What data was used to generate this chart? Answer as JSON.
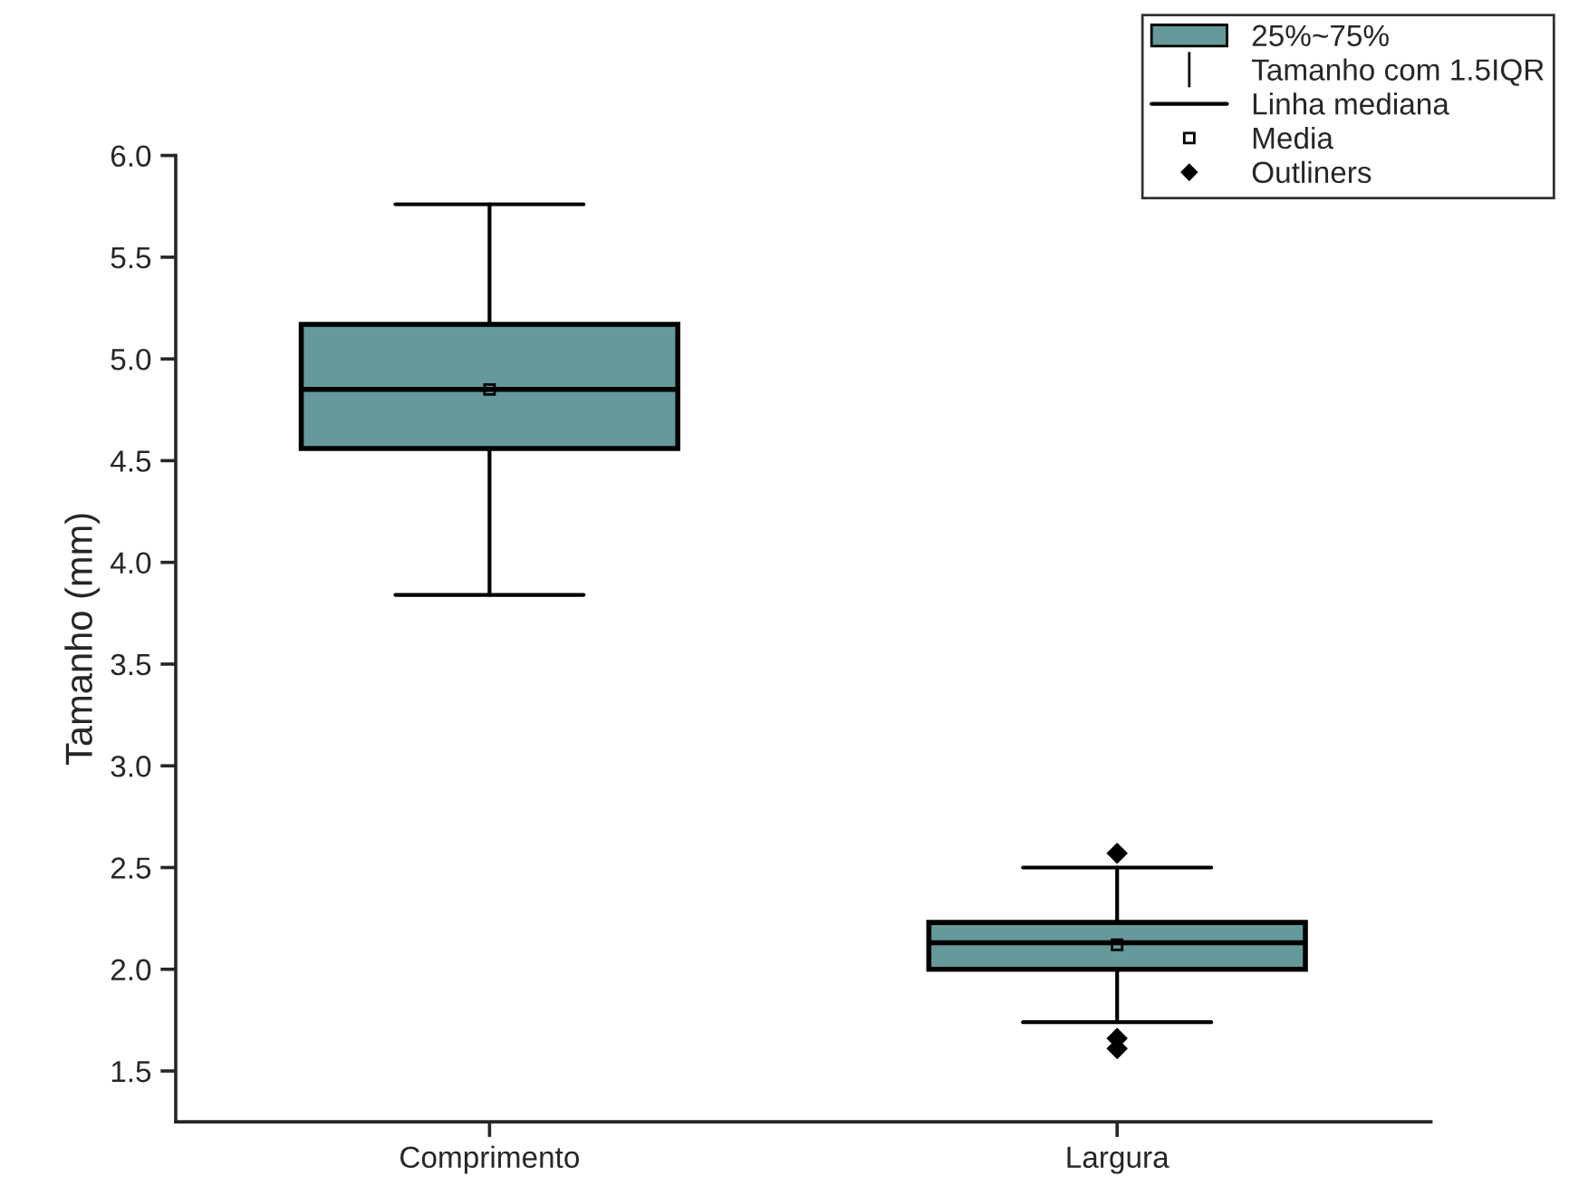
{
  "chart_data": {
    "type": "box",
    "ylabel": "Tamanho (mm)",
    "categories": [
      "Comprimento",
      "Largura"
    ],
    "series": [
      {
        "name": "25%~75%",
        "color": "#669999",
        "boxes": [
          {
            "low": 3.84,
            "q1": 4.56,
            "median": 4.85,
            "q3": 5.17,
            "high": 5.76,
            "mean": 4.85
          },
          {
            "low": 1.74,
            "q1": 2.0,
            "median": 2.13,
            "q3": 2.23,
            "high": 2.5,
            "mean": 2.12,
            "outliers": [
              2.57,
              1.66,
              1.61
            ]
          }
        ]
      }
    ],
    "annotations": [
      "Tamanho com 1.5IQR",
      "Linha mediana",
      "Media",
      "Outliners"
    ],
    "ylim": [
      1.25,
      6.0
    ],
    "yticks": [
      1.5,
      {
        "value": 2,
        "label": "2.0"
      },
      2.5,
      {
        "value": 3,
        "label": "3.0"
      },
      3.5,
      {
        "value": 4,
        "label": "4.0"
      },
      4.5,
      {
        "value": 5,
        "label": "5.0"
      },
      5.5,
      {
        "value": 6,
        "label": "6.0"
      }
    ],
    "grid": false,
    "legend": "top right"
  }
}
